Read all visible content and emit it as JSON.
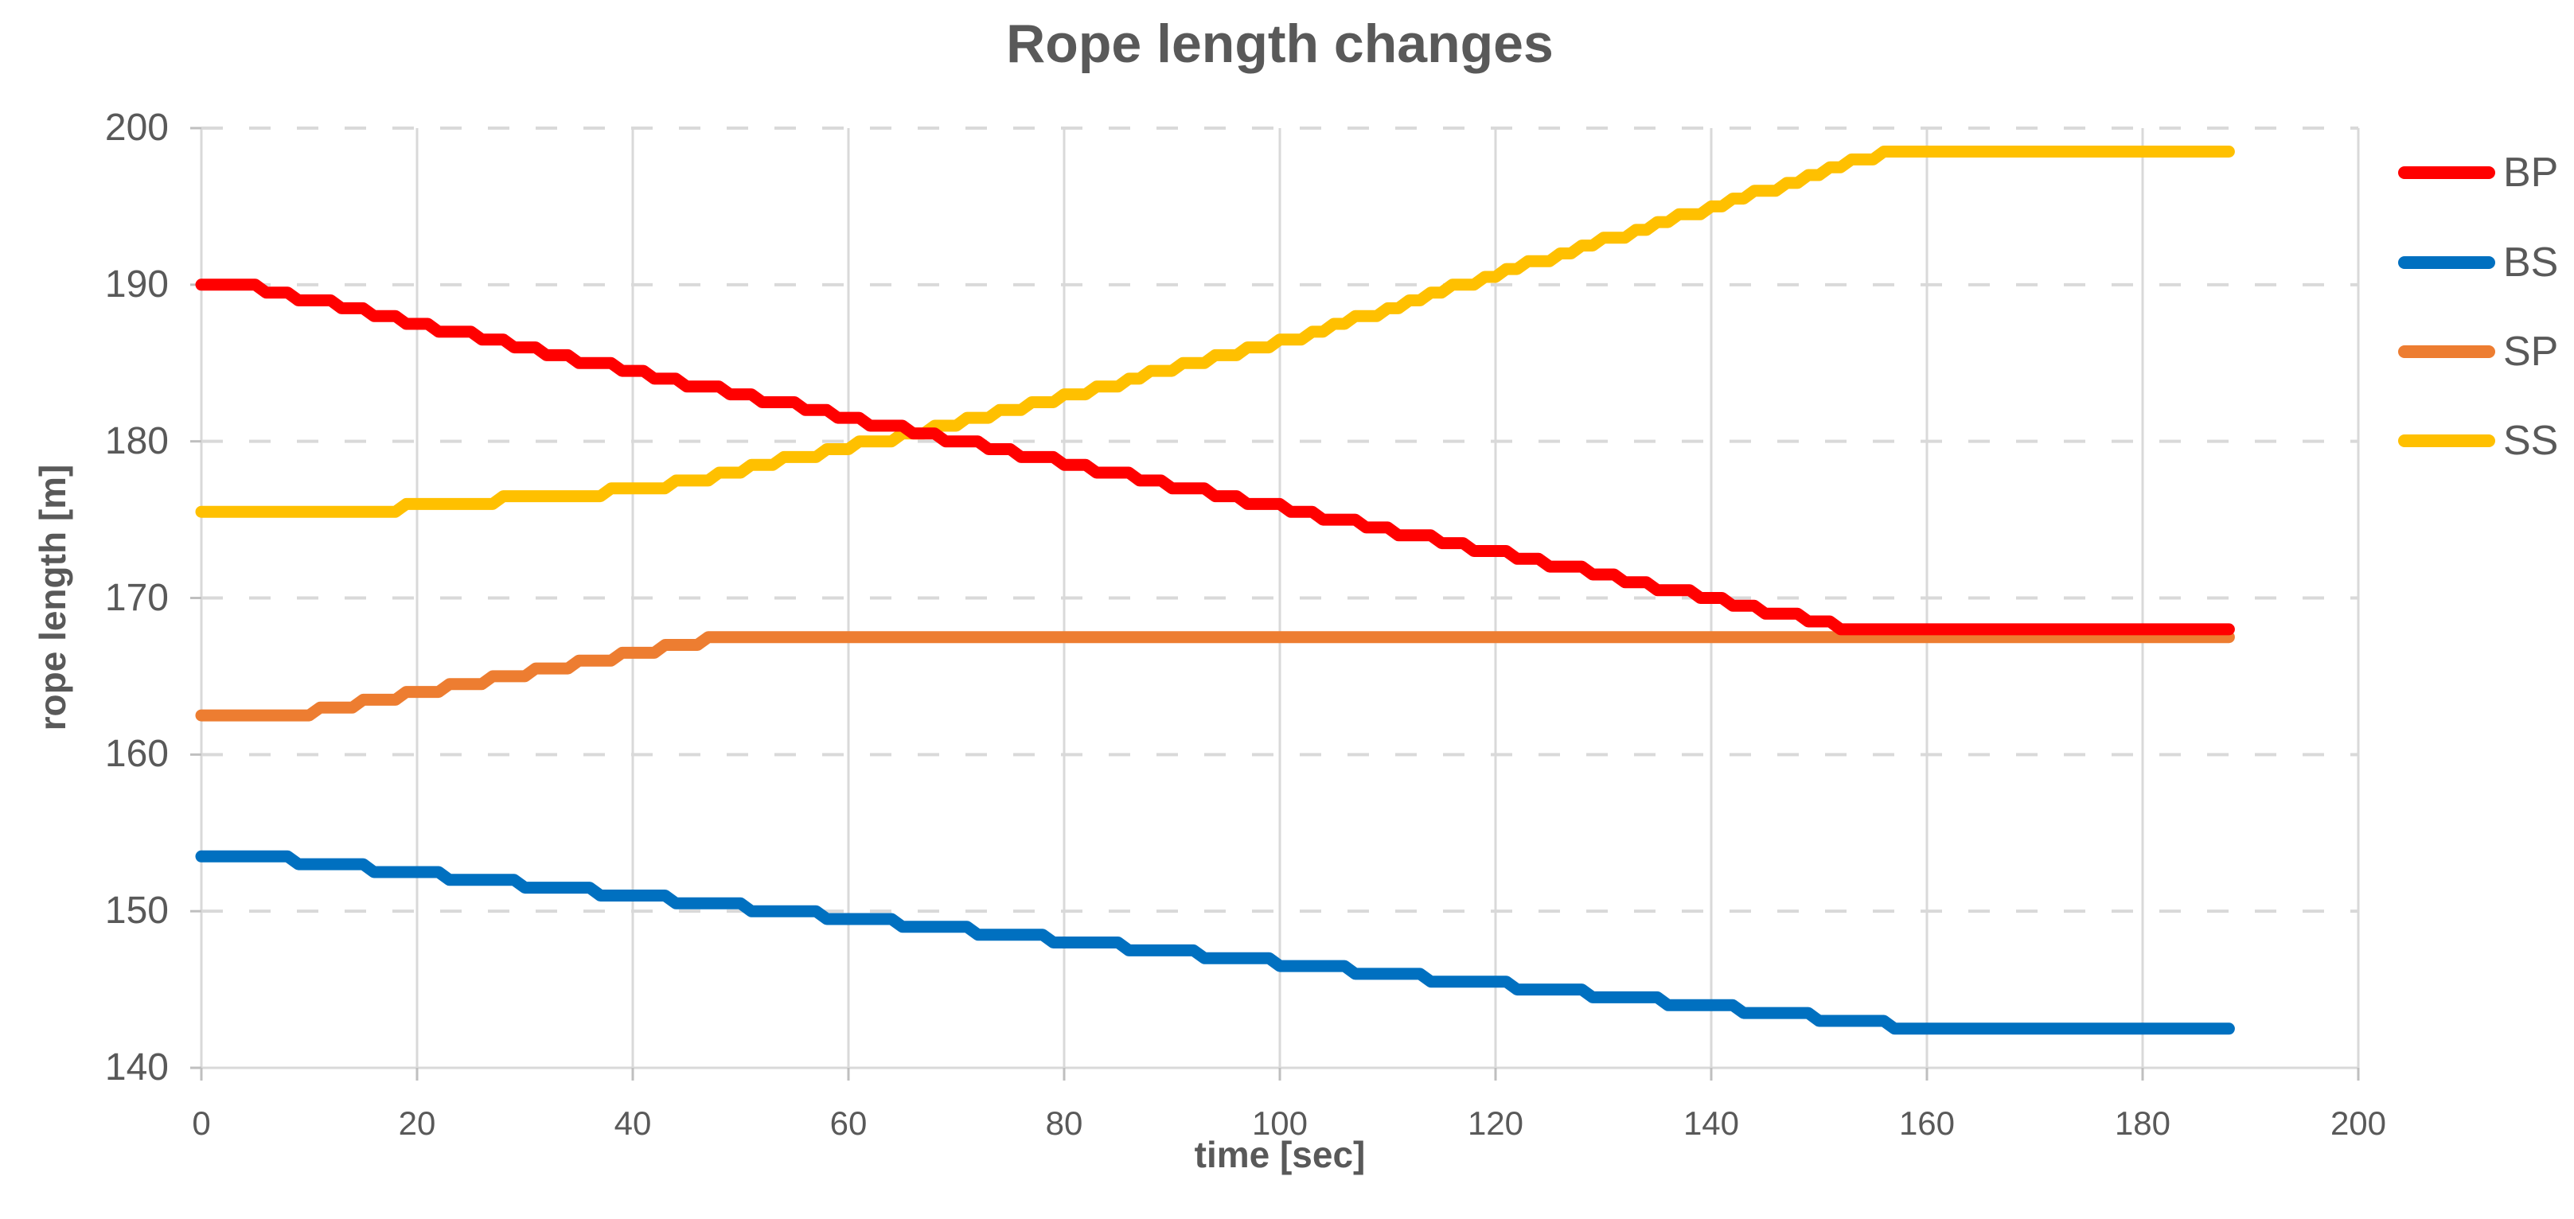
{
  "chart_data": {
    "type": "line",
    "title": "Rope length changes",
    "xlabel": "time [sec]",
    "ylabel": "rope length [m]",
    "xlim": [
      0,
      200
    ],
    "ylim": [
      140,
      200
    ],
    "xticks": [
      0,
      20,
      40,
      60,
      80,
      100,
      120,
      140,
      160,
      180,
      200
    ],
    "yticks": [
      140,
      150,
      160,
      170,
      180,
      190,
      200
    ],
    "grid": {
      "horizontal": "dashed",
      "vertical": "solid",
      "on": true
    },
    "legend_position": "right",
    "legend_entries": [
      "BP",
      "BS",
      "SP",
      "SS"
    ],
    "sample_step_sec": 1,
    "value_quantize_m": 0.5,
    "t_end_sec": 188,
    "series": [
      {
        "name": "BP",
        "color": "#FF0000",
        "keypoints": [
          [
            0,
            190.2
          ],
          [
            4,
            190.0
          ],
          [
            43,
            184.0
          ],
          [
            92,
            176.9
          ],
          [
            125,
            172.2
          ],
          [
            153,
            168.0
          ],
          [
            188,
            168.0
          ]
        ]
      },
      {
        "name": "BS",
        "color": "#0070C0",
        "keypoints": [
          [
            0,
            153.4
          ],
          [
            6,
            153.4
          ],
          [
            157,
            142.7
          ],
          [
            188,
            142.7
          ]
        ]
      },
      {
        "name": "SP",
        "color": "#ED7D31",
        "keypoints": [
          [
            0,
            162.5
          ],
          [
            9,
            162.5
          ],
          [
            48,
            167.4
          ],
          [
            188,
            167.4
          ]
        ]
      },
      {
        "name": "SS",
        "color": "#FFC000",
        "keypoints": [
          [
            0,
            175.4
          ],
          [
            12,
            175.4
          ],
          [
            42,
            177.0
          ],
          [
            66,
            180.5
          ],
          [
            100,
            186.3
          ],
          [
            156,
            198.4
          ],
          [
            188,
            198.4
          ]
        ]
      }
    ]
  },
  "colors": {
    "text": "#595959",
    "grid": "#D9D9D9",
    "axis_tick": "#BFBFBF",
    "background": "#FFFFFF"
  }
}
